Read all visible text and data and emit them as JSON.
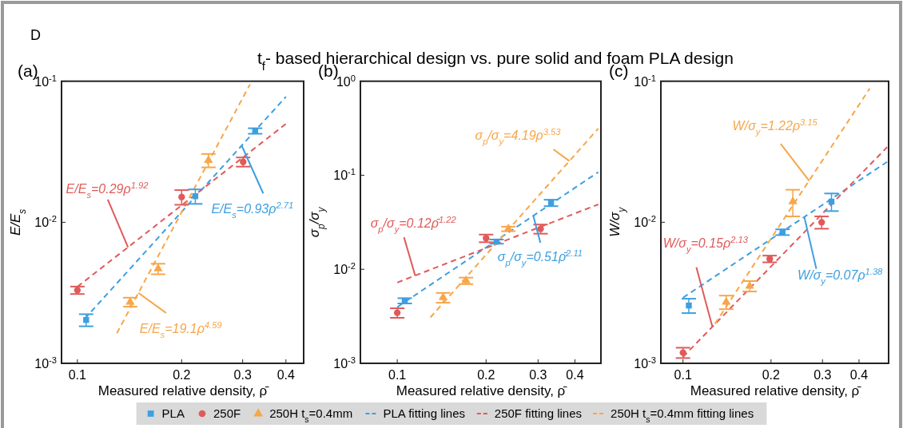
{
  "chart_data": [
    {
      "type": "scatter",
      "title": "(a)",
      "xlabel": "Measured relative density, ρ̄",
      "ylabel": "E/E$_{s}$",
      "log": "xy",
      "xlim": [
        0.09,
        0.45
      ],
      "ylim": [
        0.001,
        0.1
      ],
      "xticks": [
        0.1,
        0.2,
        0.3,
        0.4
      ],
      "yticks": [
        {
          "value": 0.001,
          "label": "10$^{-3}$"
        },
        {
          "value": 0.01,
          "label": "10$^{-2}$"
        },
        {
          "value": 0.1,
          "label": "10$^{-1}$"
        }
      ],
      "legend": "bottom",
      "series": [
        {
          "name": "PLA",
          "type": "scatter",
          "marker": "square",
          "color": "#3d9fe0",
          "x": [
            0.106,
            0.219,
            0.326
          ],
          "values": [
            0.00203,
            0.0153,
            0.0444
          ],
          "errors": [
            0.0002,
            0.0018,
            0.002
          ]
        },
        {
          "name": "250F",
          "type": "scatter",
          "marker": "circle",
          "color": "#e05a5a",
          "x": [
            0.1,
            0.2,
            0.301
          ],
          "values": [
            0.0033,
            0.0151,
            0.0268
          ],
          "errors": [
            0.0002,
            0.0018,
            0.002
          ]
        },
        {
          "name": "250H t$_{s}$=0.4mm",
          "type": "scatter",
          "marker": "triangle",
          "color": "#f7a64a",
          "x": [
            0.142,
            0.171,
            0.239
          ],
          "values": [
            0.00272,
            0.00468,
            0.0275
          ],
          "errors": [
            0.0002,
            0.0004,
            0.003
          ]
        },
        {
          "name": "PLA fitting lines",
          "type": "line",
          "line_style": "dashed",
          "marker": "none",
          "color": "#3d9fe0",
          "x": [
            0.105,
            0.4
          ],
          "values": [
            0.00207,
            0.0776
          ]
        },
        {
          "name": "250F fitting lines",
          "type": "line",
          "line_style": "dashed",
          "marker": "none",
          "color": "#e05a5a",
          "x": [
            0.1,
            0.4
          ],
          "values": [
            0.00349,
            0.0499
          ]
        },
        {
          "name": "250H t$_{s}$=0.4mm fitting lines",
          "type": "line",
          "line_style": "dashed",
          "marker": "none",
          "color": "#f7a64a",
          "x": [
            0.13,
            0.315
          ],
          "values": [
            0.001635,
            0.095
          ]
        }
      ],
      "annotations": [
        {
          "text": "E/E$_{s}$=0.93ρ$^{2.71}$",
          "x": 0.298,
          "y": 0.035
        },
        {
          "text": "E/E$_{s}$=0.29ρ$^{1.92}$",
          "x": 0.14,
          "y": 0.00665
        },
        {
          "text": "E/E$_{s}$=19.1ρ$^{4.59}$",
          "x": 0.15,
          "y": 0.00316
        },
        "D",
        "t$_{f}$- based hierarchical design vs. pure solid and foam PLA design"
      ]
    },
    {
      "type": "scatter",
      "title": "(b)",
      "xlabel": "Measured relative density, ρ̄",
      "ylabel": "σ$_{p}$/σ$_{y}$",
      "log": "xy",
      "xlim": [
        0.075,
        0.49
      ],
      "ylim": [
        0.001,
        1
      ],
      "xticks": [
        0.1,
        0.2,
        0.3,
        0.4
      ],
      "yticks": [
        {
          "value": 0.001,
          "label": "10$^{-3}$"
        },
        {
          "value": 0.01,
          "label": "10$^{-2}$"
        },
        {
          "value": 0.1,
          "label": "10$^{-1}$"
        },
        {
          "value": 1,
          "label": "10$^{0}$"
        }
      ],
      "series": [
        {
          "type": "scatter",
          "marker": "square",
          "color": "#3d9fe0",
          "x": [
            0.106,
            0.217,
            0.332
          ],
          "values": [
            0.00463,
            0.0197,
            0.0509
          ],
          "errors": [
            0.0003,
            0.001,
            0.004
          ]
        },
        {
          "type": "scatter",
          "marker": "circle",
          "color": "#e05a5a",
          "x": [
            0.1,
            0.2,
            0.306
          ],
          "values": [
            0.00345,
            0.0214,
            0.0269
          ],
          "errors": [
            0.0004,
            0.002,
            0.003
          ]
        },
        {
          "type": "scatter",
          "marker": "triangle",
          "color": "#f7a64a",
          "x": [
            0.143,
            0.171,
            0.238
          ],
          "values": [
            0.00501,
            0.00755,
            0.0269
          ],
          "errors": [
            0.0006,
            0.0006,
            0.0015
          ]
        },
        {
          "type": "line",
          "line_style": "dashed",
          "marker": "none",
          "color": "#3d9fe0",
          "x": [
            0.1,
            0.48
          ],
          "values": [
            0.00396,
            0.108
          ]
        },
        {
          "type": "line",
          "line_style": "dashed",
          "marker": "none",
          "color": "#e05a5a",
          "x": [
            0.1,
            0.48
          ],
          "values": [
            0.00723,
            0.049
          ]
        },
        {
          "type": "line",
          "line_style": "dashed",
          "marker": "none",
          "color": "#f7a64a",
          "x": [
            0.1295,
            0.48
          ],
          "values": [
            0.00308,
            0.314
          ]
        }
      ],
      "annotations": [
        {
          "text": "σ$_{p}$/σ$_{y}$=0.51ρ̄$^{2.11}$",
          "x": 0.289,
          "y": 0.0373
        },
        {
          "text": "σ$_{p}$/σ$_{y}$=0.12ρ̄$^{1.22}$",
          "x": 0.115,
          "y": 0.00857
        },
        {
          "text": "σ$_{p}$/σ$_{y}$=4.19ρ$^{3.53}$",
          "x": 0.383,
          "y": 0.1416
        }
      ]
    },
    {
      "type": "scatter",
      "title": "(c)",
      "xlabel": "Measured relative density, ρ̄",
      "ylabel": "W/σ$_{y}$",
      "log": "xy",
      "xlim": [
        0.084,
        0.505
      ],
      "ylim": [
        0.001,
        0.1
      ],
      "xticks": [
        0.1,
        0.2,
        0.3,
        0.4
      ],
      "yticks": [
        {
          "value": 0.001,
          "label": "10$^{-3}$"
        },
        {
          "value": 0.01,
          "label": "10$^{-2}$"
        },
        {
          "value": 0.1,
          "label": "10$^{-1}$"
        }
      ],
      "series": [
        {
          "type": "scatter",
          "marker": "square",
          "color": "#3d9fe0",
          "x": [
            0.1047,
            0.219,
            0.322
          ],
          "values": [
            0.00257,
            0.00851,
            0.014
          ],
          "errors": [
            0.0003,
            0.0004,
            0.002
          ]
        },
        {
          "type": "scatter",
          "marker": "circle",
          "color": "#e05a5a",
          "x": [
            0.1,
            0.198,
            0.298
          ],
          "values": [
            0.00119,
            0.0055,
            0.01
          ],
          "errors": [
            0.0001,
            0.0003,
            0.001
          ]
        },
        {
          "type": "scatter",
          "marker": "triangle",
          "color": "#f7a64a",
          "x": [
            0.1405,
            0.169,
            0.2375
          ],
          "values": [
            0.00272,
            0.00353,
            0.014
          ],
          "errors": [
            0.0003,
            0.0003,
            0.003
          ]
        },
        {
          "type": "line",
          "line_style": "dashed",
          "marker": "none",
          "color": "#3d9fe0",
          "x": [
            0.1,
            0.499
          ],
          "values": [
            0.00292,
            0.0268
          ]
        },
        {
          "type": "line",
          "line_style": "dashed",
          "marker": "none",
          "color": "#e05a5a",
          "x": [
            0.1,
            0.499
          ],
          "values": [
            0.00111,
            0.0341
          ]
        },
        {
          "type": "line",
          "line_style": "dashed",
          "marker": "none",
          "color": "#f7a64a",
          "x": [
            0.1287,
            0.435
          ],
          "values": [
            0.00191,
            0.0887
          ]
        }
      ],
      "annotations": [
        {
          "text": "W/σ$_{y}$=0.07ρ$^{1.38}$",
          "x": 0.26,
          "y": 0.0109
        },
        {
          "text": "W/σ$_{y}$=0.15ρ$^{2.13}$",
          "x": 0.126,
          "y": 0.00182
        },
        {
          "text": "W/σ$_{y}$=1.22ρ$^{3.15}$",
          "x": 0.27,
          "y": 0.0197
        }
      ]
    }
  ]
}
